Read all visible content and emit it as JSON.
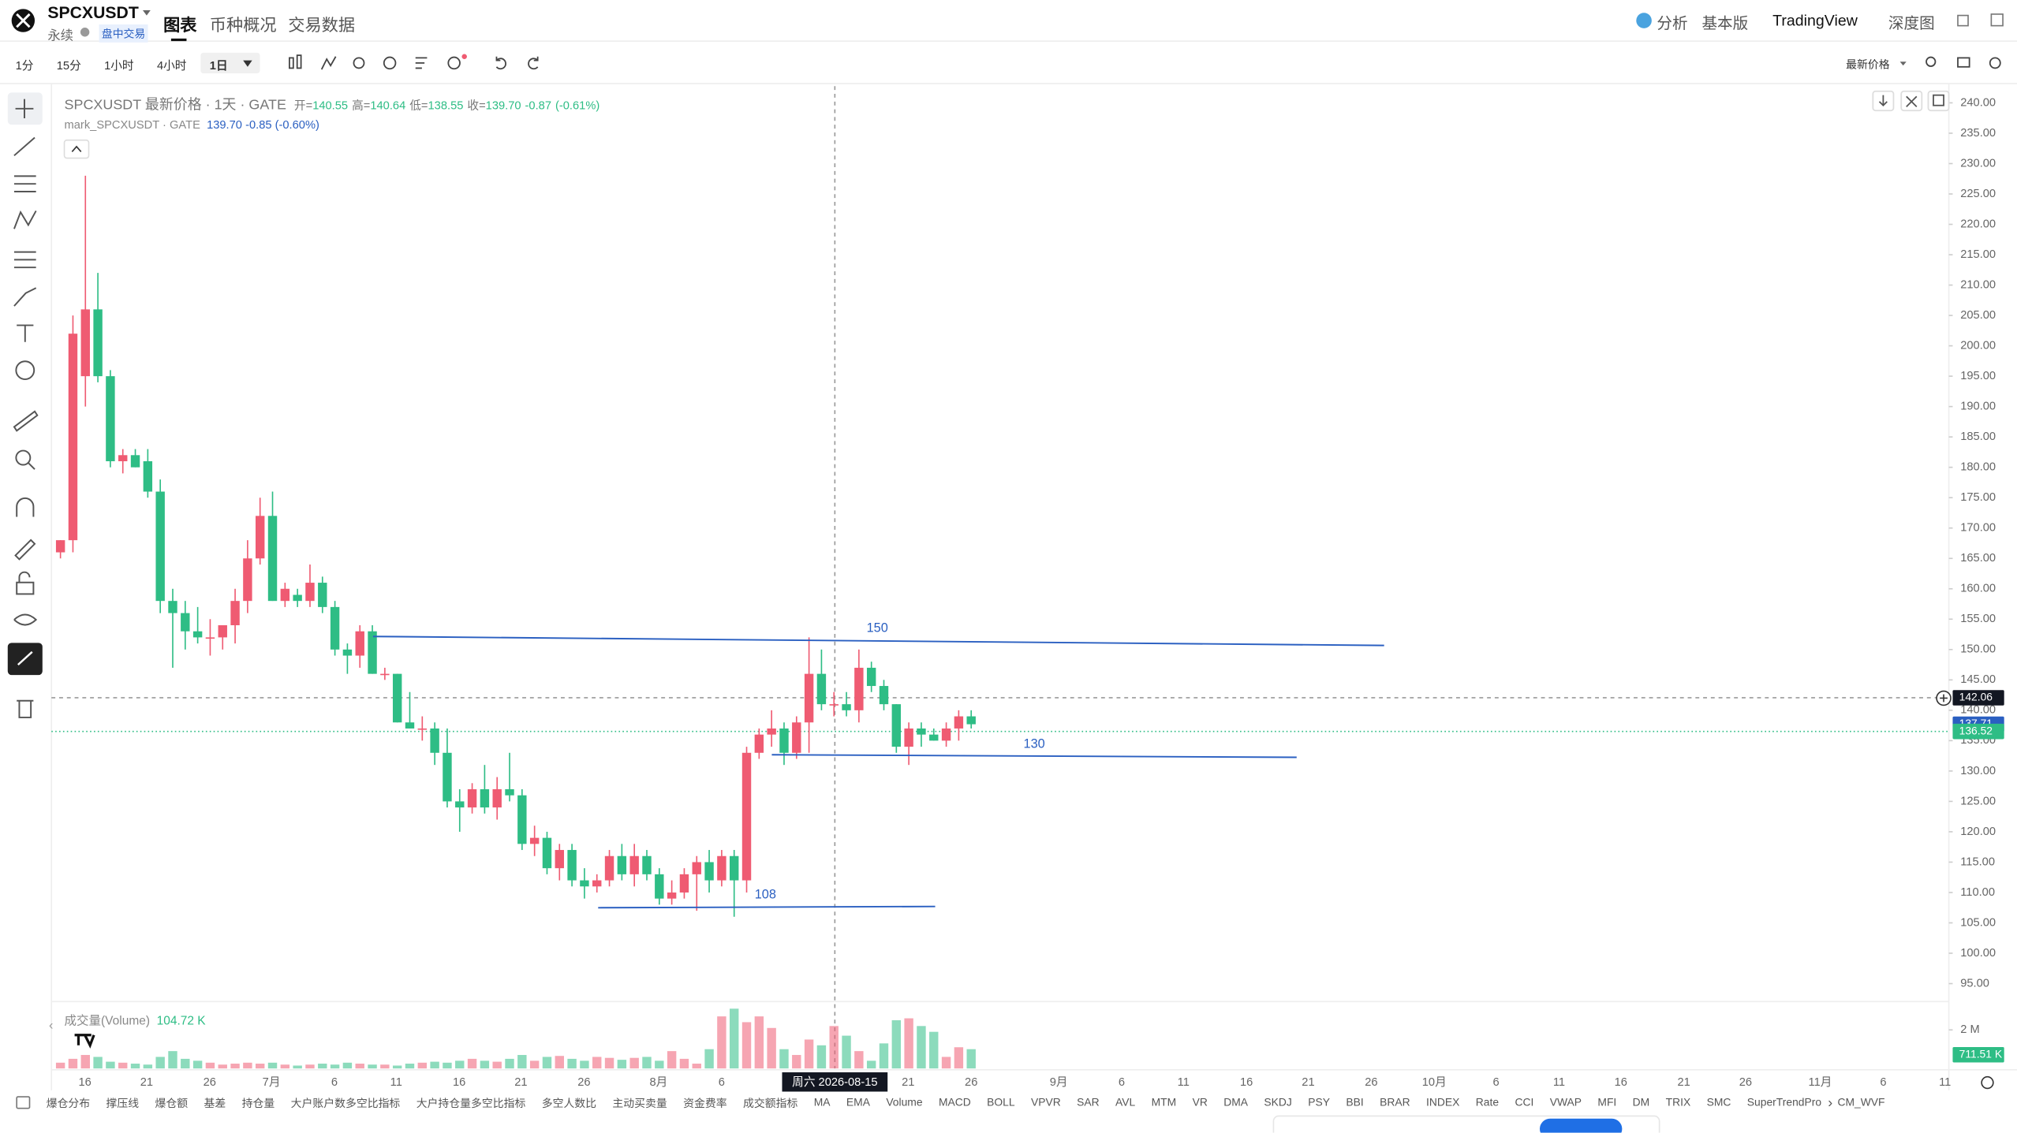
{
  "header": {
    "symbol": "SPCXUSDT",
    "contract_type": "永续",
    "session_badge": "盘中交易",
    "tabs": [
      "图表",
      "币种概况",
      "交易数据"
    ],
    "right_menu": [
      "分析",
      "基本版",
      "TradingView",
      "深度图"
    ]
  },
  "toolbar": {
    "intervals": [
      "1分",
      "15分",
      "1小时",
      "4小时",
      "1日"
    ],
    "price_type": "最新价格"
  },
  "legend": {
    "title": "SPCXUSDT 最新价格 · 1天 · GATE",
    "open_label": "开=",
    "open": "140.55",
    "high_label": "高=",
    "high": "140.64",
    "low_label": "低=",
    "low": "138.55",
    "close_label": "收=",
    "close": "139.70",
    "change": "-0.87",
    "change_pct": "(-0.61%)",
    "mark_title": "mark_SPCXUSDT · GATE",
    "mark_value": "139.70",
    "mark_change": "-0.85",
    "mark_change_pct": "(-0.60%)",
    "volume_title": "成交量(Volume)",
    "volume_value": "104.72 K"
  },
  "chart_data": {
    "type": "candlestick",
    "up_color": "#ef5b72",
    "down_color": "#2ebd85",
    "open": [
      166,
      168,
      195,
      206,
      195,
      181,
      182,
      181,
      176,
      158,
      156,
      153,
      152,
      152,
      154,
      158,
      165,
      172,
      158,
      159,
      158,
      161,
      157,
      150,
      149,
      153,
      146,
      146,
      138,
      137,
      137,
      133,
      125,
      124,
      127,
      124,
      127,
      126,
      118,
      119,
      114,
      117,
      112,
      111,
      112,
      116,
      113,
      116,
      113,
      109,
      110,
      113,
      115,
      112,
      116,
      112,
      133,
      136,
      137,
      133,
      138,
      146,
      141,
      141,
      140,
      147,
      144,
      141,
      134,
      137,
      136,
      135,
      137,
      139
    ],
    "high": [
      168,
      205,
      228,
      212,
      196,
      183,
      183,
      183,
      178,
      160,
      158,
      157,
      155,
      154,
      160,
      168,
      175,
      176,
      161,
      160,
      164,
      162,
      158,
      151,
      154,
      154,
      147,
      146,
      143,
      139,
      138,
      137,
      127,
      128,
      131,
      129,
      133,
      127,
      121,
      120,
      118,
      118,
      114,
      113,
      117,
      118,
      118,
      117,
      114,
      112,
      114,
      116,
      117,
      117,
      117,
      134,
      137,
      140,
      138,
      139,
      152,
      150,
      143,
      143,
      150,
      148,
      145,
      141,
      138,
      138,
      137,
      138,
      140,
      140
    ],
    "low": [
      165,
      166,
      190,
      194,
      180,
      179,
      180,
      175,
      156,
      147,
      150,
      151,
      149,
      150,
      151,
      156,
      164,
      158,
      157,
      157,
      157,
      156,
      149,
      146,
      147,
      146,
      145,
      138,
      137,
      135,
      131,
      124,
      120,
      123,
      123,
      122,
      125,
      117,
      116,
      113,
      112,
      111,
      109,
      110,
      111,
      112,
      111,
      112,
      108,
      108,
      109,
      107,
      110,
      111,
      106,
      110,
      132,
      134,
      131,
      132,
      133,
      140,
      139,
      139,
      138,
      143,
      140,
      133,
      131,
      134,
      135,
      134,
      135,
      137
    ],
    "close": [
      168,
      202,
      206,
      195,
      181,
      182,
      180,
      176,
      158,
      156,
      153,
      152,
      152,
      154,
      158,
      165,
      172,
      158,
      160,
      158,
      161,
      157,
      150,
      149,
      153,
      146,
      146,
      138,
      137,
      137,
      133,
      125,
      124,
      127,
      124,
      127,
      126,
      118,
      119,
      114,
      117,
      112,
      111,
      112,
      116,
      113,
      116,
      113,
      109,
      110,
      113,
      115,
      112,
      116,
      112,
      133,
      136,
      137,
      133,
      138,
      146,
      141,
      141,
      140,
      147,
      144,
      141,
      134,
      137,
      136,
      135,
      137,
      139,
      137.7
    ],
    "volume": [
      300000,
      500000,
      700000,
      600000,
      350000,
      300000,
      250000,
      200000,
      600000,
      900000,
      500000,
      400000,
      300000,
      200000,
      250000,
      300000,
      250000,
      300000,
      200000,
      150000,
      200000,
      250000,
      200000,
      300000,
      250000,
      200000,
      200000,
      150000,
      250000,
      300000,
      350000,
      300000,
      400000,
      500000,
      400000,
      350000,
      500000,
      700000,
      400000,
      600000,
      650000,
      500000,
      400000,
      600000,
      550000,
      450000,
      550000,
      600000,
      400000,
      900000,
      500000,
      250000,
      1000000,
      2700000,
      3100000,
      2400000,
      2700000,
      2100000,
      1000000,
      700000,
      1500000,
      1200000,
      2200000,
      1700000,
      900000,
      400000,
      1300000,
      2500000,
      2600000,
      2200000,
      1900000,
      600000,
      1100000,
      1000000
    ],
    "ylim": [
      92.25,
      242.75
    ],
    "yticks": [
      {
        "value": 240,
        "label": "240.00"
      },
      {
        "value": 235,
        "label": "235.00"
      },
      {
        "value": 230,
        "label": "230.00"
      },
      {
        "value": 225,
        "label": "225.00"
      },
      {
        "value": 220,
        "label": "220.00"
      },
      {
        "value": 215,
        "label": "215.00"
      },
      {
        "value": 210,
        "label": "210.00"
      },
      {
        "value": 205,
        "label": "205.00"
      },
      {
        "value": 200,
        "label": "200.00"
      },
      {
        "value": 195,
        "label": "195.00"
      },
      {
        "value": 190,
        "label": "190.00"
      },
      {
        "value": 185,
        "label": "185.00"
      },
      {
        "value": 180,
        "label": "180.00"
      },
      {
        "value": 175,
        "label": "175.00"
      },
      {
        "value": 170,
        "label": "170.00"
      },
      {
        "value": 165,
        "label": "165.00"
      },
      {
        "value": 160,
        "label": "160.00"
      },
      {
        "value": 155,
        "label": "155.00"
      },
      {
        "value": 150,
        "label": "150.00"
      },
      {
        "value": 145,
        "label": "145.00"
      },
      {
        "value": 140,
        "label": "140.00"
      },
      {
        "value": 135,
        "label": "135.00"
      },
      {
        "value": 130,
        "label": "130.00"
      },
      {
        "value": 125,
        "label": "125.00"
      },
      {
        "value": 120,
        "label": "120.00"
      },
      {
        "value": 115,
        "label": "115.00"
      },
      {
        "value": 110,
        "label": "110.00"
      },
      {
        "value": 105,
        "label": "105.00"
      },
      {
        "value": 100,
        "label": "100.00"
      },
      {
        "value": 95,
        "label": "95.00"
      }
    ],
    "volume_ylim": [
      0,
      3400000
    ],
    "volume_yticks": [
      {
        "value": 2000000,
        "label": "2 M"
      }
    ],
    "x_labels": [
      "16",
      "21",
      "26",
      "7月",
      "6",
      "11",
      "16",
      "21",
      "26",
      "8月",
      "6",
      "21",
      "26",
      "9月",
      "6",
      "11",
      "16",
      "21",
      "26",
      "10月",
      "6",
      "11",
      "16",
      "21",
      "26",
      "11月",
      "6",
      "11"
    ],
    "crosshair": {
      "price": 142.06,
      "date": "周六 2026-08-15"
    },
    "last_price": 137.71,
    "mark_price": 136.52,
    "volume_last": {
      "value": 711510,
      "label": "711.51 K"
    },
    "annotations": [
      150,
      130,
      108
    ]
  },
  "indicators": [
    "爆仓分布",
    "撑压线",
    "爆仓额",
    "基差",
    "持仓量",
    "大户账户数多空比指标",
    "大户持仓量多空比指标",
    "多空人数比",
    "主动买卖量",
    "资金费率",
    "成交额指标",
    "MA",
    "EMA",
    "Volume",
    "MACD",
    "BOLL",
    "VPVR",
    "SAR",
    "AVL",
    "MTM",
    "VR",
    "DMA",
    "SKDJ",
    "PSY",
    "BBI",
    "BRAR",
    "INDEX",
    "Rate",
    "CCI",
    "VWAP",
    "MFI",
    "DM",
    "TRIX",
    "SMC",
    "SuperTrendPro",
    "CM_WVF"
  ]
}
